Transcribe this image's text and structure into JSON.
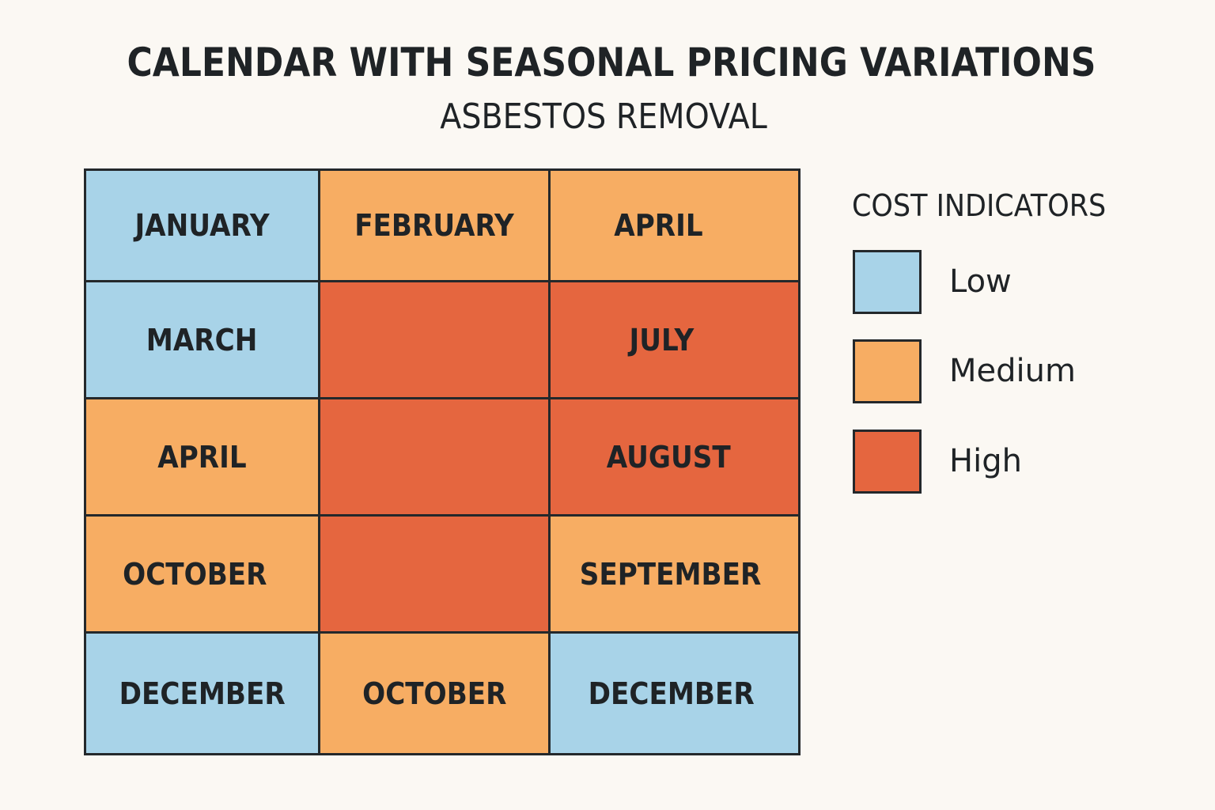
{
  "title": "CALENDAR WITH SEASONAL PRICING VARIATIONS",
  "subtitle": "ASBESTOS REMOVAL",
  "colors": {
    "low": "#a8d3e8",
    "medium": "#f7ad63",
    "high": "#e5663f",
    "border": "#24282b",
    "background": "#fbf8f3"
  },
  "calendar": {
    "rows": [
      [
        {
          "label": "JANUARY",
          "level": "low"
        },
        {
          "label": "FEBRUARY",
          "level": "medium"
        },
        {
          "label": "APRIL",
          "level": "medium"
        }
      ],
      [
        {
          "label": "MARCH",
          "level": "low"
        },
        {
          "label": "",
          "level": "high"
        },
        {
          "label": "JULY",
          "level": "high"
        }
      ],
      [
        {
          "label": "APRIL",
          "level": "medium"
        },
        {
          "label": "",
          "level": "high"
        },
        {
          "label": "AUGUST",
          "level": "high"
        }
      ],
      [
        {
          "label": "OCTOBER",
          "level": "medium"
        },
        {
          "label": "",
          "level": "high"
        },
        {
          "label": "SEPTEMBER",
          "level": "medium"
        }
      ],
      [
        {
          "label": "DECEMBER",
          "level": "low"
        },
        {
          "label": "OCTOBER",
          "level": "medium"
        },
        {
          "label": "DECEMBER",
          "level": "low"
        }
      ]
    ]
  },
  "legend": {
    "title": "COST INDICATORS",
    "items": [
      {
        "label": "Low",
        "level": "low"
      },
      {
        "label": "Medium",
        "level": "medium"
      },
      {
        "label": "High",
        "level": "high"
      }
    ]
  }
}
